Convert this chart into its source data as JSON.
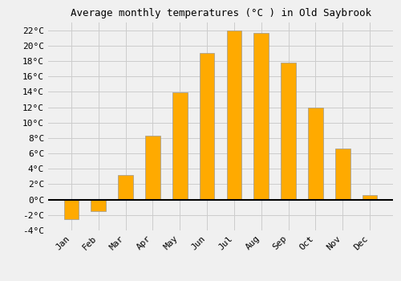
{
  "title": "Average monthly temperatures (°C ) in Old Saybrook",
  "months": [
    "Jan",
    "Feb",
    "Mar",
    "Apr",
    "May",
    "Jun",
    "Jul",
    "Aug",
    "Sep",
    "Oct",
    "Nov",
    "Dec"
  ],
  "values": [
    -2.5,
    -1.5,
    3.2,
    8.3,
    13.9,
    19.0,
    22.0,
    21.6,
    17.8,
    12.0,
    6.6,
    0.6
  ],
  "bar_color": "#FFAA00",
  "bar_edge_color": "#999999",
  "ylim": [
    -4,
    23
  ],
  "yticks": [
    -4,
    -2,
    0,
    2,
    4,
    6,
    8,
    10,
    12,
    14,
    16,
    18,
    20,
    22
  ],
  "grid_color": "#cccccc",
  "background_color": "#f0f0f0",
  "title_fontsize": 9,
  "tick_fontsize": 8,
  "font_family": "monospace"
}
